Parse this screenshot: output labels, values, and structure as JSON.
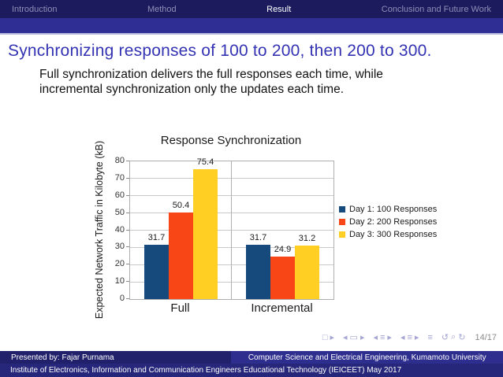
{
  "nav": {
    "items": [
      {
        "label": "Introduction",
        "active": false
      },
      {
        "label": "Method",
        "active": false
      },
      {
        "label": "Result",
        "active": true
      },
      {
        "label": "Conclusion and Future Work",
        "active": false
      }
    ]
  },
  "slide": {
    "title": "Synchronizing responses of 100 to 200, then 200 to 300.",
    "body_line1": "Full synchronization delivers the full responses each time, while",
    "body_line2": "incremental synchronization only the updates each time."
  },
  "chart_data": {
    "type": "bar",
    "title": "Response Synchronization",
    "xlabel": "",
    "ylabel": "Expected Network Traffic in Kilobyte (kB)",
    "categories": [
      "Full",
      "Incremental"
    ],
    "series": [
      {
        "name": "Day 1: 100 Responses",
        "color": "#164A7D",
        "values": [
          31.7,
          31.7
        ]
      },
      {
        "name": "Day 2: 200 Responses",
        "color": "#F94617",
        "values": [
          50.4,
          24.9
        ]
      },
      {
        "name": "Day 3: 300 Responses",
        "color": "#FFD023",
        "values": [
          75.4,
          31.2
        ]
      }
    ],
    "ylim": [
      0,
      80
    ],
    "ytick_step": 10,
    "grid": true,
    "legend_position": "right"
  },
  "beamer_nav": {
    "symbols": [
      {
        "name": "slide-icon",
        "glyph": "□",
        "gap": false
      },
      {
        "name": "slide-next-icon",
        "glyph": "▸",
        "gap": false
      },
      {
        "name": "frame-prev-icon",
        "glyph": "◂",
        "gap": true
      },
      {
        "name": "frame-icon",
        "glyph": "▭",
        "gap": false
      },
      {
        "name": "frame-next-icon",
        "glyph": "▸",
        "gap": false
      },
      {
        "name": "subsection-prev-icon",
        "glyph": "◂",
        "gap": true
      },
      {
        "name": "subsection-icon",
        "glyph": "≡",
        "gap": false
      },
      {
        "name": "subsection-next-icon",
        "glyph": "▸",
        "gap": false
      },
      {
        "name": "section-prev-icon",
        "glyph": "◂",
        "gap": true
      },
      {
        "name": "section-icon",
        "glyph": "≡",
        "gap": false
      },
      {
        "name": "section-next-icon",
        "glyph": "▸",
        "gap": false
      },
      {
        "name": "document-icon",
        "glyph": "≡",
        "gap": true
      },
      {
        "name": "back-icon",
        "glyph": "↺",
        "gap": true
      },
      {
        "name": "search-icon",
        "glyph": "⌕",
        "gap": false
      },
      {
        "name": "forward-icon",
        "glyph": "↻",
        "gap": false
      }
    ],
    "page": "14/17"
  },
  "footer": {
    "author": "Presented by: Fajar Purnama",
    "department": "Computer Science and Electrical Engineering, Kumamoto University",
    "institute": "Institute of Electronics, Information and Communication Engineers Educational Technology (IEICEET) May 2017"
  },
  "colors": {
    "header_top": "#1B1B5E",
    "header_band": "#2E2E94",
    "title_blue": "#3333B3",
    "footer_left": "#20206B",
    "footer_right": "#2E2E8F",
    "footer_bottom": "#26267A"
  }
}
